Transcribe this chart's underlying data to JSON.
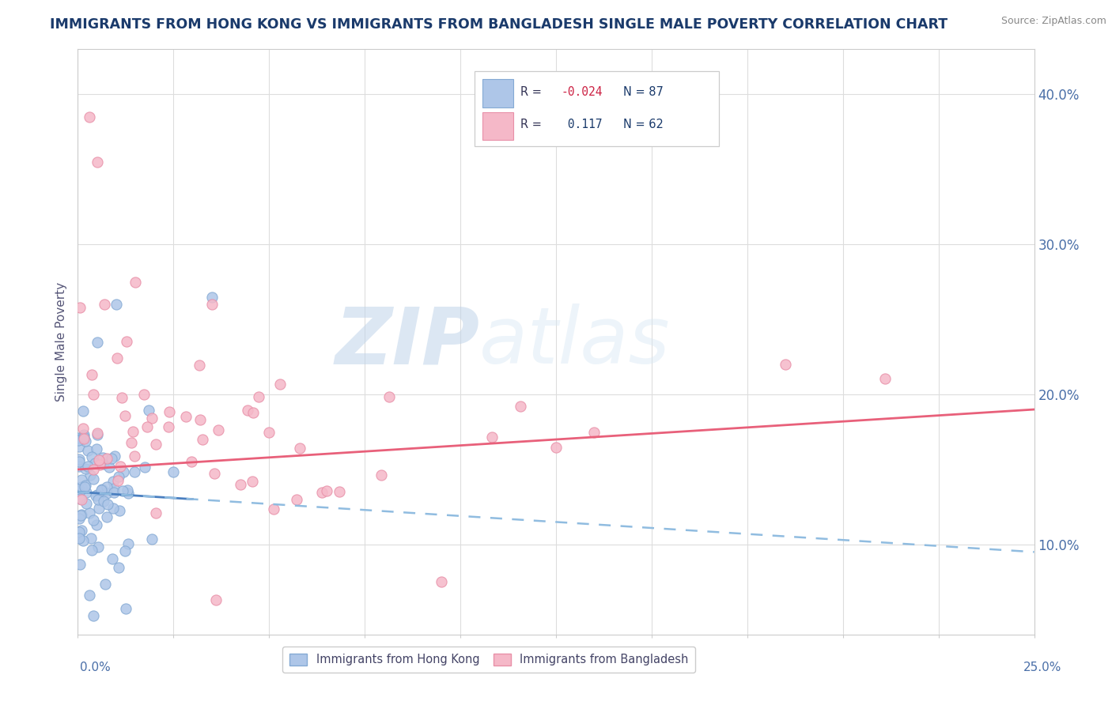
{
  "title": "IMMIGRANTS FROM HONG KONG VS IMMIGRANTS FROM BANGLADESH SINGLE MALE POVERTY CORRELATION CHART",
  "source_text": "Source: ZipAtlas.com",
  "ylabel": "Single Male Poverty",
  "xlim": [
    0.0,
    25.0
  ],
  "ylim": [
    4.0,
    43.0
  ],
  "yticks": [
    10.0,
    20.0,
    30.0,
    40.0
  ],
  "ytick_labels": [
    "10.0%",
    "20.0%",
    "30.0%",
    "40.0%"
  ],
  "color_hk": "#aec6e8",
  "color_bd": "#f5b8c8",
  "color_hk_edge": "#85aad4",
  "color_bd_edge": "#e890a8",
  "color_hk_line_solid": "#4a7fc0",
  "color_hk_line_dash": "#90bce0",
  "color_bd_line": "#e8607a",
  "color_title": "#1a3a6b",
  "color_source": "#888888",
  "color_right_ytick": "#4a6fa8",
  "color_ylabel": "#555577",
  "watermark_zip": "#c8d8ec",
  "watermark_atlas": "#d8e8f4",
  "legend_label_hk": "Immigrants from Hong Kong",
  "legend_label_bd": "Immigrants from Bangladesh"
}
